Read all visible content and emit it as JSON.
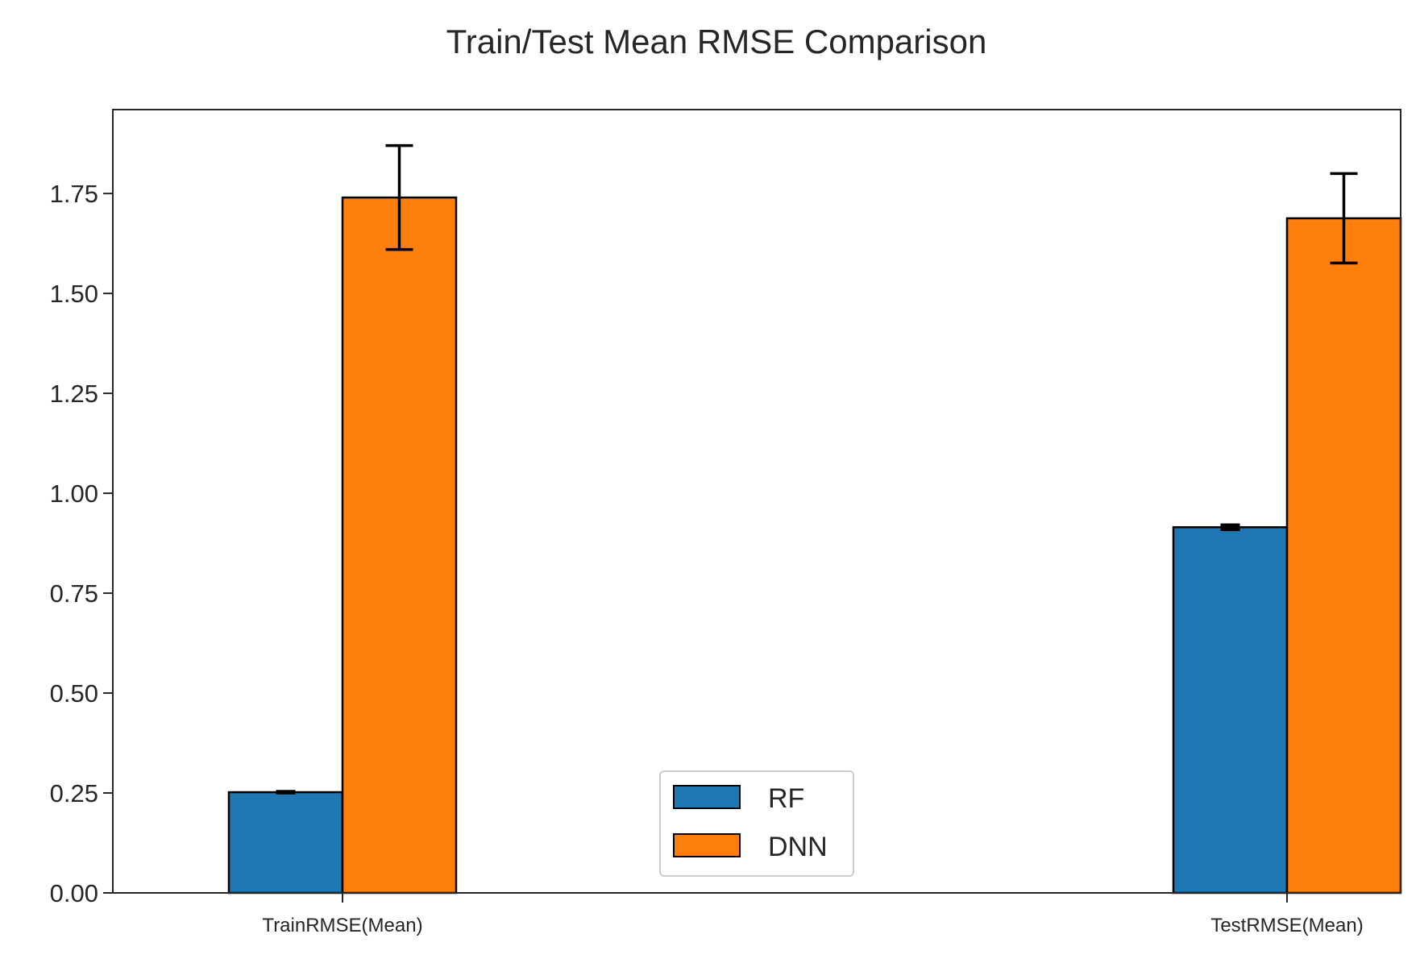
{
  "chart_data": {
    "type": "bar",
    "title": "Train/Test Mean RMSE Comparison",
    "xlabel": "",
    "ylabel": "",
    "categories": [
      "TrainRMSE(Mean)",
      "TestRMSE(Mean)"
    ],
    "series": [
      {
        "name": "RF",
        "color": "#1f77b4",
        "values": [
          0.252,
          0.915
        ],
        "errors": [
          0.002,
          0.006
        ]
      },
      {
        "name": "DNN",
        "color": "#ff7f0e",
        "values": [
          1.74,
          1.688
        ],
        "errors": [
          0.13,
          0.112
        ]
      }
    ],
    "ylim": [
      0,
      1.96
    ],
    "yticks": [
      "0.00",
      "0.25",
      "0.50",
      "0.75",
      "1.00",
      "1.25",
      "1.50",
      "1.75"
    ],
    "grid": false,
    "legend_position": "lower center",
    "error_bars": true
  }
}
